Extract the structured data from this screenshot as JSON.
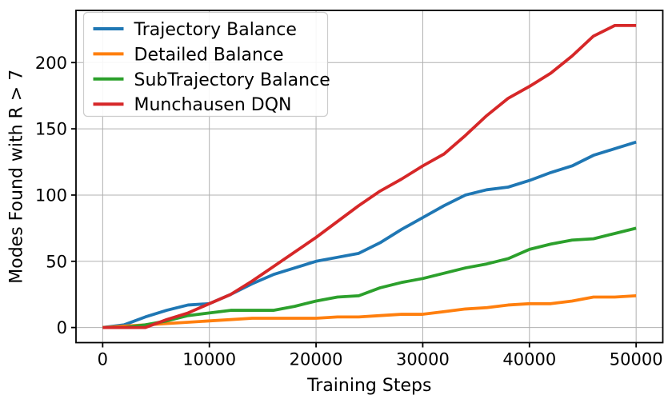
{
  "figure": {
    "description_label": "Line chart of modes found versus training steps for four GFlowNet / RL methods"
  },
  "chart_data": {
    "type": "line",
    "title": "",
    "xlabel": "Training Steps",
    "ylabel": "Modes Found with R > 7",
    "xlim": [
      -2500,
      52500
    ],
    "ylim": [
      -11.4,
      239.4
    ],
    "xticks": [
      0,
      10000,
      20000,
      30000,
      40000,
      50000
    ],
    "yticks": [
      0,
      50,
      100,
      150,
      200
    ],
    "grid": true,
    "legend_position": "upper left",
    "x": [
      0,
      2000,
      4000,
      6000,
      8000,
      10000,
      12000,
      14000,
      16000,
      18000,
      20000,
      22000,
      24000,
      26000,
      28000,
      30000,
      32000,
      34000,
      36000,
      38000,
      40000,
      42000,
      44000,
      46000,
      48000,
      50000
    ],
    "series": [
      {
        "name": "Trajectory Balance",
        "color": "#1f77b4",
        "values": [
          0,
          2,
          8,
          13,
          17,
          18,
          25,
          33,
          40,
          45,
          50,
          53,
          56,
          64,
          74,
          83,
          92,
          100,
          104,
          106,
          111,
          117,
          122,
          130,
          135,
          140
        ]
      },
      {
        "name": "Detailed Balance",
        "color": "#ff7f0e",
        "values": [
          0,
          1,
          2,
          3,
          4,
          5,
          6,
          7,
          7,
          7,
          7,
          8,
          8,
          9,
          10,
          10,
          12,
          14,
          15,
          17,
          18,
          18,
          20,
          23,
          23,
          24
        ]
      },
      {
        "name": "SubTrajectory Balance",
        "color": "#2ca02c",
        "values": [
          0,
          0,
          2,
          5,
          9,
          11,
          13,
          13,
          13,
          16,
          20,
          23,
          24,
          30,
          34,
          37,
          41,
          45,
          48,
          52,
          59,
          63,
          66,
          67,
          71,
          75
        ]
      },
      {
        "name": "Munchausen DQN",
        "color": "#d62728",
        "values": [
          0,
          0,
          0,
          6,
          11,
          18,
          25,
          35,
          46,
          57,
          68,
          80,
          92,
          103,
          112,
          122,
          131,
          145,
          160,
          173,
          182,
          192,
          205,
          220,
          228,
          228
        ]
      }
    ],
    "style": {
      "grid_color": "#b0b0b0",
      "axis_color": "#000000",
      "legend_border_color": "#cccccc",
      "legend_background": "#ffffff"
    }
  }
}
